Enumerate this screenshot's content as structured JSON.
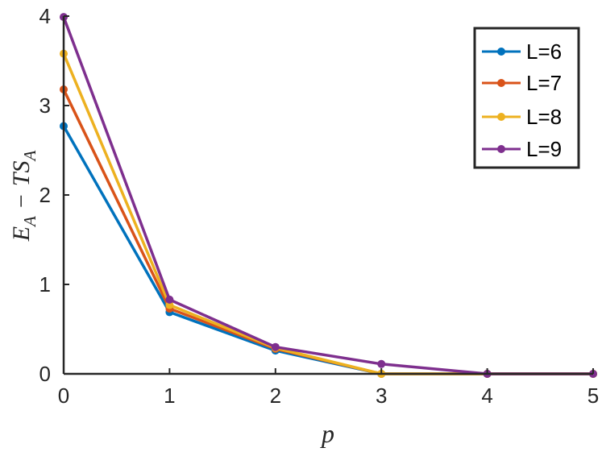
{
  "chart_data": {
    "type": "line",
    "xlabel": "p",
    "ylabel": {
      "E": "E",
      "A1": "A",
      "minus": "−",
      "T": "T",
      "S": "S",
      "A2": "A"
    },
    "xlim": [
      0,
      5
    ],
    "ylim": [
      0,
      4
    ],
    "xticks": [
      "0",
      "1",
      "2",
      "3",
      "4",
      "5"
    ],
    "yticks": [
      "0",
      "1",
      "2",
      "3",
      "4"
    ],
    "grid": false,
    "legend_position": "top-right",
    "series": [
      {
        "name": "L=6",
        "color": "#0072BD",
        "x": [
          0,
          1,
          2,
          3,
          4,
          5
        ],
        "y": [
          2.77,
          0.69,
          0.26,
          0.0,
          0.0,
          0.0
        ]
      },
      {
        "name": "L=7",
        "color": "#D95319",
        "x": [
          0,
          1,
          2,
          3,
          4,
          5
        ],
        "y": [
          3.18,
          0.73,
          0.28,
          0.0,
          0.0,
          0.0
        ]
      },
      {
        "name": "L=8",
        "color": "#EDB120",
        "x": [
          0,
          1,
          2,
          3,
          4,
          5
        ],
        "y": [
          3.58,
          0.77,
          0.29,
          0.0,
          0.0,
          0.0
        ]
      },
      {
        "name": "L=9",
        "color": "#7E2F8E",
        "x": [
          0,
          1,
          2,
          3,
          4,
          5
        ],
        "y": [
          3.99,
          0.83,
          0.3,
          0.11,
          0.0,
          0.0
        ]
      }
    ]
  }
}
